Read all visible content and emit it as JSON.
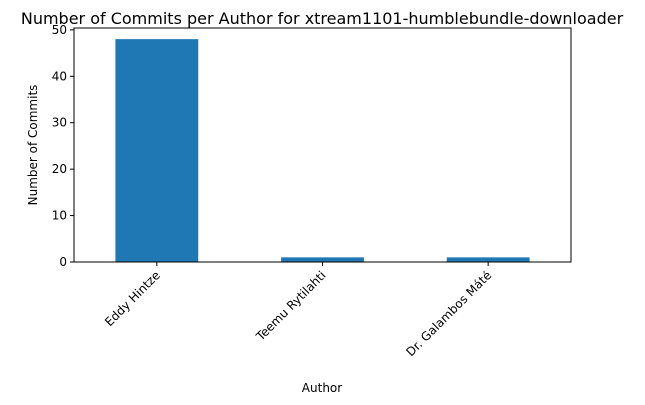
{
  "chart_data": {
    "type": "bar",
    "title": "Number of Commits per Author for xtream1101-humblebundle-downloader",
    "xlabel": "Author",
    "ylabel": "Number of Commits",
    "categories": [
      "Eddy Hintze",
      "Teemu Rytilahti",
      "Dr. Galambos Máté"
    ],
    "values": [
      48,
      1,
      1
    ],
    "ylim": [
      0,
      50.4
    ],
    "yticks": [
      0,
      10,
      20,
      30,
      40,
      50
    ],
    "grid": false,
    "legend": "none",
    "bar_color": "#1f77b4"
  }
}
